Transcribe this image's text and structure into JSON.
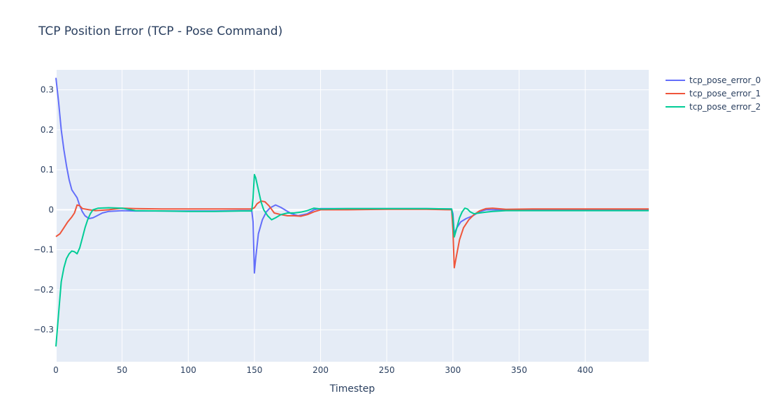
{
  "chart_data": {
    "type": "line",
    "title": "TCP Position Error (TCP - Pose Command)",
    "xlabel": "Timestep",
    "ylabel": "",
    "xlim": [
      0,
      448
    ],
    "ylim": [
      -0.38,
      0.35
    ],
    "xticks": [
      0,
      50,
      100,
      150,
      200,
      250,
      300,
      350,
      400
    ],
    "yticks": [
      -0.3,
      -0.2,
      -0.1,
      0,
      0.1,
      0.2,
      0.3
    ],
    "ytick_labels": [
      "−0.3",
      "−0.2",
      "−0.1",
      "0",
      "0.1",
      "0.2",
      "0.3"
    ],
    "grid": true,
    "legend_position": "top-right",
    "background": "#e5ecf6",
    "series": [
      {
        "name": "tcp_pose_error_0",
        "color": "#636efa",
        "points": [
          [
            0,
            0.33
          ],
          [
            2,
            0.27
          ],
          [
            4,
            0.2
          ],
          [
            6,
            0.15
          ],
          [
            8,
            0.11
          ],
          [
            10,
            0.075
          ],
          [
            12,
            0.05
          ],
          [
            14,
            0.04
          ],
          [
            16,
            0.03
          ],
          [
            18,
            0.01
          ],
          [
            20,
            -0.005
          ],
          [
            22,
            -0.015
          ],
          [
            25,
            -0.022
          ],
          [
            28,
            -0.02
          ],
          [
            31,
            -0.015
          ],
          [
            35,
            -0.008
          ],
          [
            40,
            -0.004
          ],
          [
            50,
            -0.002
          ],
          [
            60,
            -0.003
          ],
          [
            80,
            -0.003
          ],
          [
            100,
            -0.003
          ],
          [
            120,
            -0.003
          ],
          [
            140,
            -0.002
          ],
          [
            148,
            -0.002
          ],
          [
            149,
            -0.03
          ],
          [
            150,
            -0.158
          ],
          [
            151,
            -0.12
          ],
          [
            153,
            -0.06
          ],
          [
            156,
            -0.025
          ],
          [
            159,
            -0.005
          ],
          [
            162,
            0.005
          ],
          [
            166,
            0.012
          ],
          [
            170,
            0.006
          ],
          [
            174,
            -0.002
          ],
          [
            178,
            -0.01
          ],
          [
            183,
            -0.015
          ],
          [
            190,
            -0.01
          ],
          [
            195,
            0.0
          ],
          [
            200,
            0.003
          ],
          [
            220,
            0.003
          ],
          [
            250,
            0.003
          ],
          [
            280,
            0.003
          ],
          [
            299,
            0.002
          ],
          [
            300,
            -0.01
          ],
          [
            301,
            -0.06
          ],
          [
            303,
            -0.045
          ],
          [
            306,
            -0.03
          ],
          [
            310,
            -0.022
          ],
          [
            315,
            -0.015
          ],
          [
            320,
            -0.005
          ],
          [
            325,
            0.0
          ],
          [
            330,
            0.0
          ],
          [
            340,
            0.0
          ],
          [
            360,
            0.0
          ],
          [
            380,
            0.0
          ],
          [
            400,
            0.0
          ],
          [
            420,
            0.0
          ],
          [
            448,
            0.0
          ]
        ]
      },
      {
        "name": "tcp_pose_error_1",
        "color": "#ef553b",
        "points": [
          [
            0,
            -0.067
          ],
          [
            3,
            -0.06
          ],
          [
            6,
            -0.045
          ],
          [
            9,
            -0.03
          ],
          [
            12,
            -0.018
          ],
          [
            14,
            -0.008
          ],
          [
            16,
            0.012
          ],
          [
            18,
            0.01
          ],
          [
            20,
            0.003
          ],
          [
            25,
            0.0
          ],
          [
            30,
            -0.002
          ],
          [
            40,
            0.0
          ],
          [
            50,
            0.004
          ],
          [
            60,
            0.003
          ],
          [
            80,
            0.002
          ],
          [
            100,
            0.002
          ],
          [
            120,
            0.002
          ],
          [
            140,
            0.002
          ],
          [
            148,
            0.002
          ],
          [
            150,
            0.005
          ],
          [
            152,
            0.015
          ],
          [
            155,
            0.022
          ],
          [
            158,
            0.02
          ],
          [
            161,
            0.01
          ],
          [
            165,
            -0.008
          ],
          [
            170,
            -0.012
          ],
          [
            175,
            -0.015
          ],
          [
            180,
            -0.015
          ],
          [
            185,
            -0.016
          ],
          [
            190,
            -0.012
          ],
          [
            195,
            -0.005
          ],
          [
            200,
            0.0
          ],
          [
            220,
            0.0
          ],
          [
            250,
            0.001
          ],
          [
            280,
            0.001
          ],
          [
            299,
            0.0
          ],
          [
            300,
            -0.05
          ],
          [
            301,
            -0.145
          ],
          [
            303,
            -0.11
          ],
          [
            305,
            -0.075
          ],
          [
            308,
            -0.045
          ],
          [
            312,
            -0.025
          ],
          [
            316,
            -0.012
          ],
          [
            320,
            -0.003
          ],
          [
            325,
            0.003
          ],
          [
            330,
            0.004
          ],
          [
            340,
            0.001
          ],
          [
            360,
            0.002
          ],
          [
            380,
            0.002
          ],
          [
            400,
            0.002
          ],
          [
            420,
            0.002
          ],
          [
            448,
            0.002
          ]
        ]
      },
      {
        "name": "tcp_pose_error_2",
        "color": "#00cc96",
        "points": [
          [
            0,
            -0.342
          ],
          [
            2,
            -0.26
          ],
          [
            4,
            -0.18
          ],
          [
            6,
            -0.145
          ],
          [
            8,
            -0.122
          ],
          [
            10,
            -0.11
          ],
          [
            12,
            -0.103
          ],
          [
            14,
            -0.105
          ],
          [
            16,
            -0.11
          ],
          [
            18,
            -0.095
          ],
          [
            20,
            -0.07
          ],
          [
            22,
            -0.045
          ],
          [
            24,
            -0.025
          ],
          [
            26,
            -0.01
          ],
          [
            28,
            0.0
          ],
          [
            32,
            0.004
          ],
          [
            40,
            0.005
          ],
          [
            50,
            0.004
          ],
          [
            60,
            -0.002
          ],
          [
            80,
            -0.003
          ],
          [
            100,
            -0.004
          ],
          [
            120,
            -0.004
          ],
          [
            140,
            -0.003
          ],
          [
            148,
            -0.003
          ],
          [
            149,
            0.03
          ],
          [
            150,
            0.088
          ],
          [
            151,
            0.08
          ],
          [
            153,
            0.05
          ],
          [
            155,
            0.02
          ],
          [
            157,
            0.0
          ],
          [
            160,
            -0.015
          ],
          [
            163,
            -0.025
          ],
          [
            166,
            -0.02
          ],
          [
            170,
            -0.012
          ],
          [
            175,
            -0.008
          ],
          [
            180,
            -0.008
          ],
          [
            185,
            -0.006
          ],
          [
            190,
            -0.002
          ],
          [
            195,
            0.004
          ],
          [
            200,
            0.002
          ],
          [
            220,
            0.003
          ],
          [
            250,
            0.003
          ],
          [
            280,
            0.003
          ],
          [
            299,
            0.002
          ],
          [
            300,
            -0.02
          ],
          [
            301,
            -0.068
          ],
          [
            303,
            -0.045
          ],
          [
            305,
            -0.02
          ],
          [
            307,
            -0.005
          ],
          [
            309,
            0.004
          ],
          [
            311,
            0.002
          ],
          [
            313,
            -0.005
          ],
          [
            316,
            -0.01
          ],
          [
            320,
            -0.008
          ],
          [
            325,
            -0.006
          ],
          [
            330,
            -0.004
          ],
          [
            340,
            -0.002
          ],
          [
            360,
            -0.002
          ],
          [
            380,
            -0.002
          ],
          [
            400,
            -0.002
          ],
          [
            420,
            -0.002
          ],
          [
            448,
            -0.002
          ]
        ]
      }
    ]
  }
}
